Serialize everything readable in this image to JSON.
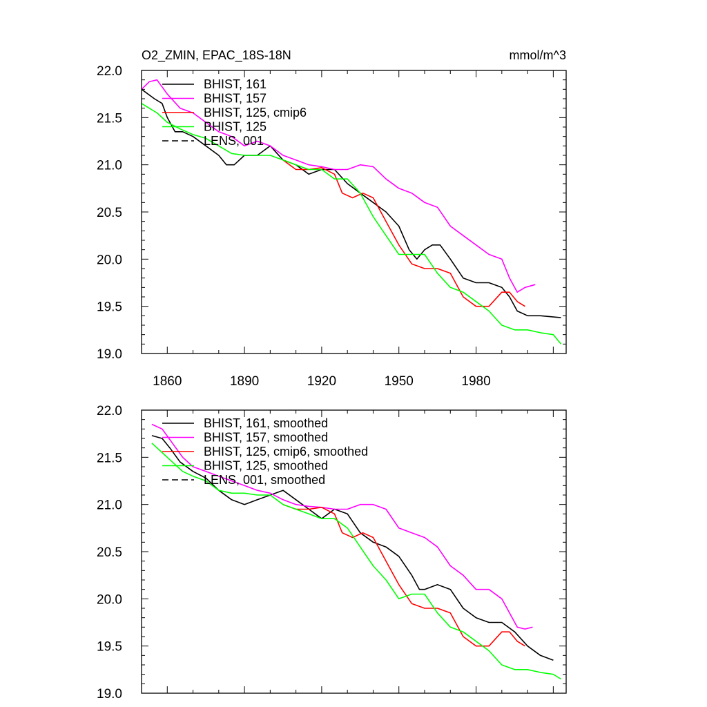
{
  "chart_data": [
    {
      "type": "line",
      "title_left": "O2_ZMIN, EPAC_18S-18N",
      "title_right": "mmol/m^3",
      "xlim": [
        1850,
        2015
      ],
      "ylim": [
        19.0,
        22.0
      ],
      "xticks": [
        "1860",
        "1890",
        "1920",
        "1950",
        "1980"
      ],
      "yticks": [
        "19.0",
        "19.5",
        "20.0",
        "20.5",
        "21.0",
        "21.5",
        "22.0"
      ],
      "grid": false,
      "legend_position": "top-left",
      "legend": [
        {
          "label": "BHIST, 161",
          "color": "#000000",
          "dash": "solid"
        },
        {
          "label": "BHIST, 157",
          "color": "#ff00ff",
          "dash": "solid"
        },
        {
          "label": "BHIST, 125, cmip6",
          "color": "#ff0000",
          "dash": "solid"
        },
        {
          "label": "BHIST, 125",
          "color": "#00ff00",
          "dash": "solid"
        },
        {
          "label": "LENS, 001",
          "color": "#000000",
          "dash": "dashed"
        }
      ],
      "series": [
        {
          "name": "BHIST, 161",
          "color": "#000000",
          "x": [
            1850,
            1855,
            1858,
            1860,
            1863,
            1866,
            1870,
            1875,
            1880,
            1883,
            1886,
            1890,
            1895,
            1900,
            1905,
            1910,
            1915,
            1920,
            1925,
            1930,
            1935,
            1940,
            1945,
            1950,
            1954,
            1957,
            1960,
            1963,
            1966,
            1970,
            1975,
            1980,
            1985,
            1990,
            1993,
            1996,
            2000,
            2005,
            2013
          ],
          "y": [
            21.8,
            21.7,
            21.65,
            21.5,
            21.35,
            21.35,
            21.3,
            21.2,
            21.1,
            21.0,
            21.0,
            21.1,
            21.1,
            21.2,
            21.05,
            21.0,
            20.9,
            20.95,
            20.95,
            20.8,
            20.7,
            20.6,
            20.5,
            20.35,
            20.1,
            20.0,
            20.1,
            20.15,
            20.15,
            20.0,
            19.8,
            19.75,
            19.75,
            19.7,
            19.6,
            19.45,
            19.4,
            19.4,
            19.38
          ]
        },
        {
          "name": "BHIST, 157",
          "color": "#ff00ff",
          "x": [
            1850,
            1853,
            1856,
            1860,
            1865,
            1870,
            1875,
            1880,
            1885,
            1890,
            1895,
            1900,
            1905,
            1910,
            1915,
            1920,
            1925,
            1930,
            1935,
            1940,
            1945,
            1950,
            1955,
            1960,
            1965,
            1970,
            1975,
            1980,
            1985,
            1990,
            1993,
            1996,
            1999,
            2003
          ],
          "y": [
            21.8,
            21.88,
            21.9,
            21.75,
            21.6,
            21.55,
            21.45,
            21.35,
            21.3,
            21.2,
            21.25,
            21.2,
            21.1,
            21.05,
            21.0,
            20.98,
            20.95,
            20.95,
            21.0,
            20.98,
            20.85,
            20.75,
            20.7,
            20.6,
            20.55,
            20.35,
            20.25,
            20.15,
            20.05,
            20.0,
            19.8,
            19.65,
            19.7,
            19.73
          ]
        },
        {
          "name": "BHIST, 125, cmip6",
          "color": "#ff0000",
          "x": [
            1905,
            1910,
            1915,
            1920,
            1925,
            1928,
            1932,
            1936,
            1940,
            1945,
            1950,
            1955,
            1960,
            1965,
            1970,
            1975,
            1980,
            1985,
            1990,
            1993,
            1996,
            1999
          ],
          "y": [
            21.05,
            20.95,
            20.95,
            20.97,
            20.9,
            20.7,
            20.65,
            20.7,
            20.65,
            20.4,
            20.15,
            19.95,
            19.9,
            19.9,
            19.85,
            19.6,
            19.5,
            19.5,
            19.65,
            19.65,
            19.55,
            19.5
          ]
        },
        {
          "name": "BHIST, 125",
          "color": "#00ff00",
          "x": [
            1850,
            1853,
            1856,
            1860,
            1865,
            1870,
            1875,
            1880,
            1885,
            1890,
            1895,
            1900,
            1905,
            1910,
            1915,
            1920,
            1925,
            1930,
            1935,
            1940,
            1945,
            1950,
            1955,
            1960,
            1965,
            1970,
            1975,
            1980,
            1985,
            1990,
            1995,
            2000,
            2005,
            2010,
            2013
          ],
          "y": [
            21.65,
            21.6,
            21.55,
            21.45,
            21.38,
            21.32,
            21.28,
            21.2,
            21.12,
            21.1,
            21.1,
            21.1,
            21.05,
            21.0,
            20.95,
            20.95,
            20.85,
            20.85,
            20.7,
            20.45,
            20.25,
            20.05,
            20.05,
            20.05,
            19.85,
            19.7,
            19.65,
            19.55,
            19.45,
            19.3,
            19.25,
            19.25,
            19.22,
            19.2,
            19.1
          ]
        }
      ]
    },
    {
      "type": "line",
      "xlim": [
        1850,
        2015
      ],
      "ylim": [
        19.0,
        22.0
      ],
      "yticks": [
        "19.0",
        "19.5",
        "20.0",
        "20.5",
        "21.0",
        "21.5",
        "22.0"
      ],
      "grid": false,
      "legend_position": "top-left",
      "legend": [
        {
          "label": "BHIST, 161, smoothed",
          "color": "#000000",
          "dash": "solid"
        },
        {
          "label": "BHIST, 157, smoothed",
          "color": "#ff00ff",
          "dash": "solid"
        },
        {
          "label": "BHIST, 125, cmip6, smoothed",
          "color": "#ff0000",
          "dash": "solid"
        },
        {
          "label": "BHIST, 125, smoothed",
          "color": "#00ff00",
          "dash": "solid"
        },
        {
          "label": "LENS, 001, smoothed",
          "color": "#000000",
          "dash": "dashed"
        }
      ],
      "series": [
        {
          "name": "BHIST, 161, smoothed",
          "color": "#000000",
          "x": [
            1854,
            1858,
            1861,
            1865,
            1870,
            1875,
            1880,
            1885,
            1890,
            1895,
            1900,
            1905,
            1910,
            1915,
            1920,
            1925,
            1930,
            1935,
            1940,
            1945,
            1950,
            1955,
            1958,
            1960,
            1965,
            1970,
            1975,
            1980,
            1985,
            1990,
            1995,
            2000,
            2005,
            2010
          ],
          "y": [
            21.73,
            21.7,
            21.6,
            21.45,
            21.35,
            21.28,
            21.15,
            21.05,
            21.0,
            21.05,
            21.1,
            21.15,
            21.05,
            20.95,
            20.85,
            20.95,
            20.9,
            20.7,
            20.6,
            20.55,
            20.45,
            20.25,
            20.1,
            20.1,
            20.15,
            20.1,
            19.9,
            19.8,
            19.75,
            19.75,
            19.65,
            19.5,
            19.4,
            19.35
          ]
        },
        {
          "name": "BHIST, 157, smoothed",
          "color": "#ff00ff",
          "x": [
            1854,
            1858,
            1862,
            1866,
            1870,
            1875,
            1880,
            1885,
            1890,
            1895,
            1900,
            1905,
            1910,
            1915,
            1920,
            1925,
            1930,
            1935,
            1940,
            1945,
            1950,
            1955,
            1960,
            1965,
            1970,
            1975,
            1980,
            1985,
            1990,
            1993,
            1996,
            1999,
            2002
          ],
          "y": [
            21.85,
            21.8,
            21.65,
            21.5,
            21.4,
            21.35,
            21.3,
            21.25,
            21.2,
            21.15,
            21.12,
            21.05,
            21.0,
            20.98,
            20.97,
            20.95,
            20.95,
            21.0,
            21.0,
            20.95,
            20.75,
            20.7,
            20.65,
            20.55,
            20.35,
            20.25,
            20.1,
            20.1,
            20.0,
            19.85,
            19.7,
            19.68,
            19.7
          ]
        },
        {
          "name": "BHIST, 125, cmip6, smoothed",
          "color": "#ff0000",
          "x": [
            1905,
            1910,
            1915,
            1920,
            1925,
            1928,
            1932,
            1936,
            1940,
            1945,
            1950,
            1955,
            1960,
            1965,
            1970,
            1975,
            1980,
            1985,
            1990,
            1993,
            1996,
            1999
          ],
          "y": [
            21.0,
            20.95,
            20.95,
            20.97,
            20.9,
            20.7,
            20.65,
            20.7,
            20.65,
            20.4,
            20.15,
            19.95,
            19.9,
            19.9,
            19.85,
            19.6,
            19.5,
            19.5,
            19.65,
            19.65,
            19.55,
            19.5
          ]
        },
        {
          "name": "BHIST, 125, smoothed",
          "color": "#00ff00",
          "x": [
            1854,
            1858,
            1862,
            1866,
            1870,
            1875,
            1880,
            1885,
            1890,
            1895,
            1900,
            1905,
            1910,
            1915,
            1920,
            1925,
            1930,
            1935,
            1940,
            1945,
            1950,
            1955,
            1960,
            1965,
            1970,
            1975,
            1980,
            1985,
            1990,
            1995,
            2000,
            2005,
            2010,
            2013
          ],
          "y": [
            21.65,
            21.55,
            21.45,
            21.35,
            21.3,
            21.25,
            21.15,
            21.12,
            21.12,
            21.1,
            21.1,
            21.0,
            20.95,
            20.9,
            20.85,
            20.85,
            20.75,
            20.55,
            20.35,
            20.2,
            20.0,
            20.05,
            20.05,
            19.85,
            19.7,
            19.65,
            19.55,
            19.45,
            19.3,
            19.25,
            19.25,
            19.22,
            19.2,
            19.15
          ]
        }
      ]
    }
  ]
}
